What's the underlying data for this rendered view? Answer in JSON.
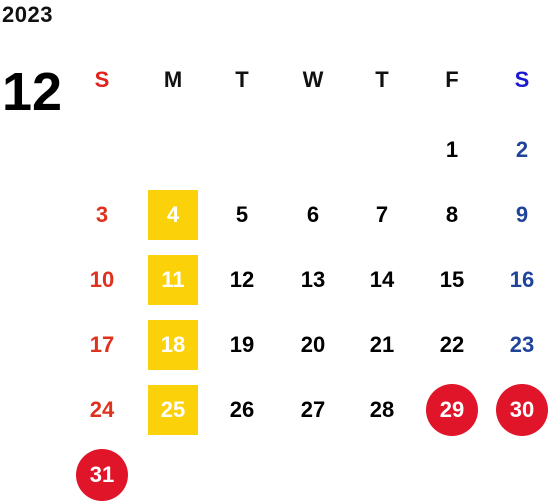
{
  "year": "2023",
  "month": "12",
  "weekdays": [
    "S",
    "M",
    "T",
    "W",
    "T",
    "F",
    "S"
  ],
  "weeks": [
    [
      "",
      "",
      "",
      "",
      "",
      "1",
      "2"
    ],
    [
      "3",
      "4",
      "5",
      "6",
      "7",
      "8",
      "9"
    ],
    [
      "10",
      "11",
      "12",
      "13",
      "14",
      "15",
      "16"
    ],
    [
      "17",
      "18",
      "19",
      "20",
      "21",
      "22",
      "23"
    ],
    [
      "24",
      "25",
      "26",
      "27",
      "28",
      "29",
      "30"
    ],
    [
      "31",
      "",
      "",
      "",
      "",
      "",
      ""
    ]
  ],
  "highlighted_days": [
    "4",
    "11",
    "18",
    "25"
  ],
  "holiday_days": [
    "29",
    "30",
    "31"
  ],
  "colors": {
    "sunday": "#e0301e",
    "saturday": "#1f4499",
    "highlight": "#fbd20a",
    "holiday": "#e0152a"
  }
}
